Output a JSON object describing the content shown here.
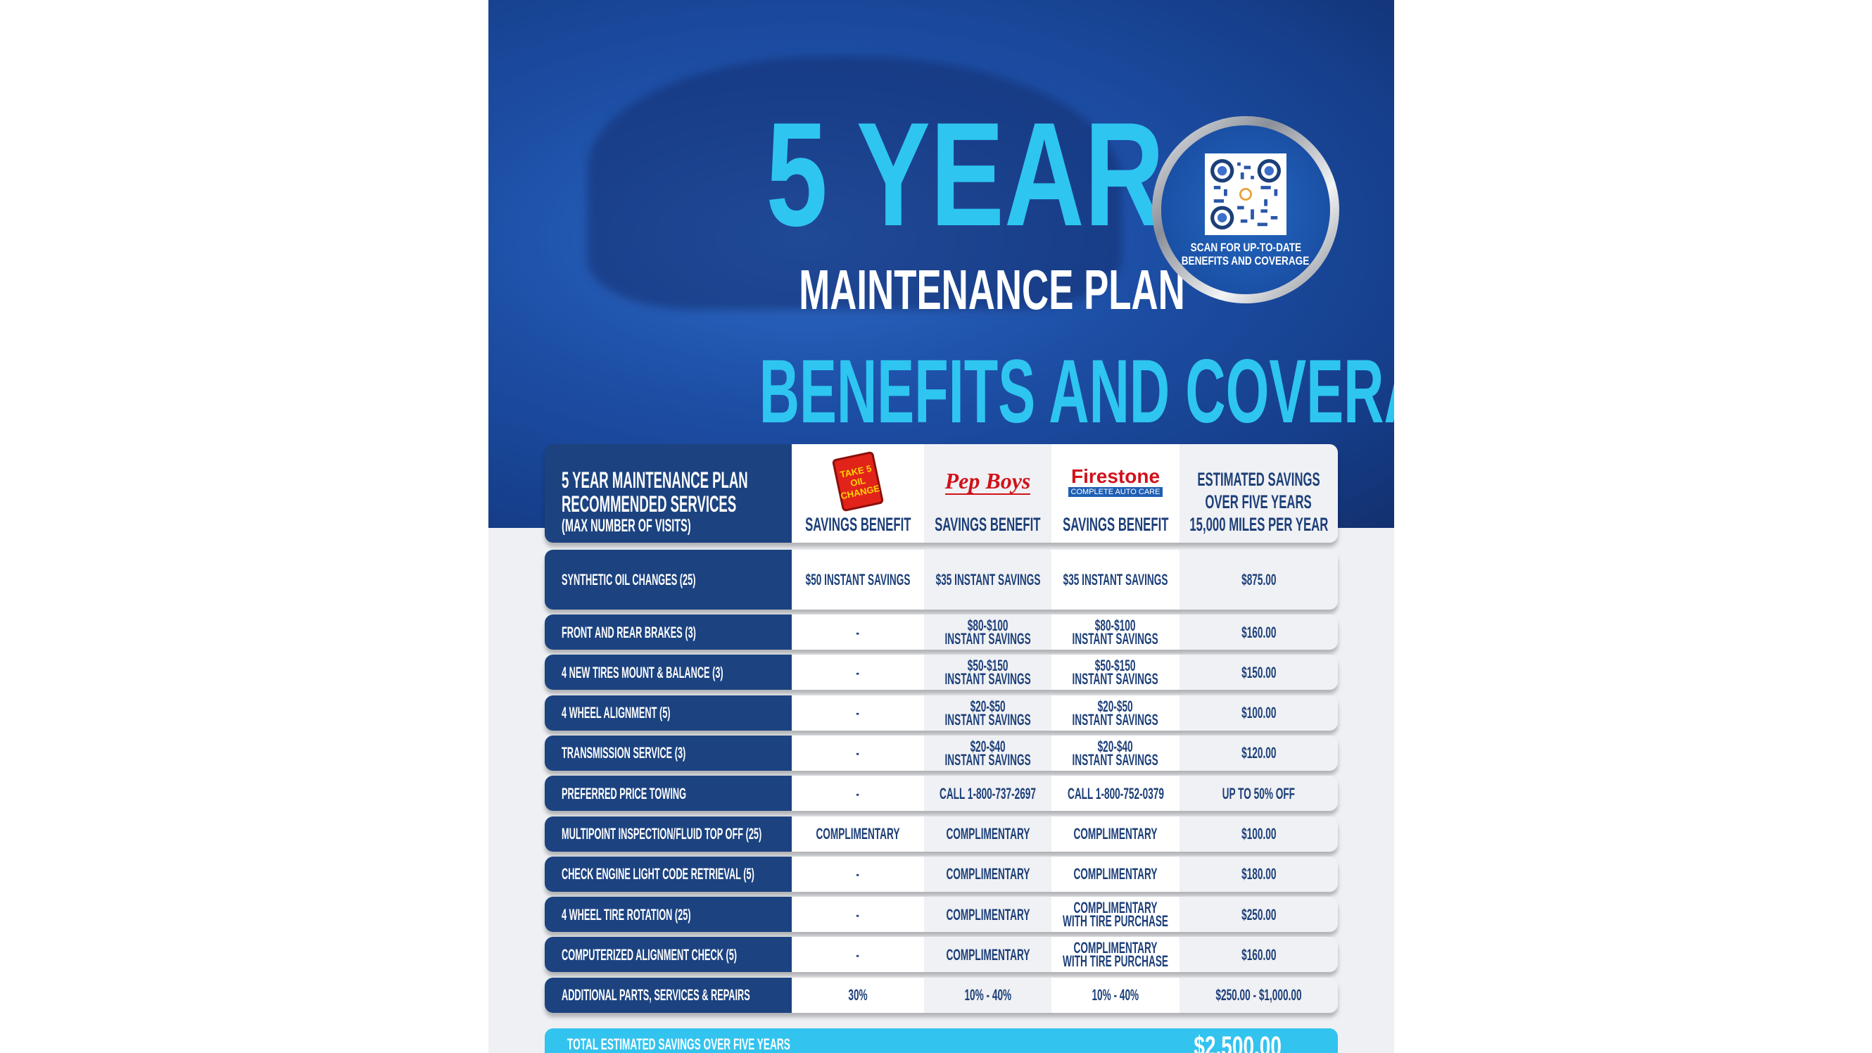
{
  "hero": {
    "title_big": "5 YEAR",
    "title_sub": "MAINTENANCE PLAN",
    "headline": "BENEFITS AND COVERAGE",
    "qr_caption_1": "SCAN FOR UP-TO-DATE",
    "qr_caption_2": "BENEFITS AND COVERAGE"
  },
  "colors": {
    "navy": "#1c4380",
    "cyan": "#2ec5f1",
    "hero_blue": "#1d4fa6"
  },
  "table": {
    "header": {
      "col0_1": "5 YEAR MAINTENANCE PLAN",
      "col0_2": "RECOMMENDED SERVICES",
      "col0_3": "(MAX NUMBER OF VISITS)",
      "brand1": "TAKE 5 OIL CHANGE",
      "brand2": "Pep Boys",
      "brand3": "Firestone",
      "brand3_tag": "COMPLETE AUTO CARE",
      "col1": "SAVINGS BENEFIT",
      "col2": "SAVINGS BENEFIT",
      "col3": "SAVINGS BENEFIT",
      "col4_1": "ESTIMATED SAVINGS",
      "col4_2": "OVER FIVE YEARS",
      "col4_3": "15,000 MILES PER YEAR"
    },
    "rows": [
      {
        "service": "SYNTHETIC OIL CHANGES (25)",
        "take5": "$50 INSTANT SAVINGS",
        "pepboys": "$35 INSTANT SAVINGS",
        "firestone": "$35 INSTANT SAVINGS",
        "estimated": "$875.00"
      },
      {
        "service": "FRONT AND REAR BRAKES (3)",
        "take5": "-",
        "pepboys": "$80-$100\nINSTANT SAVINGS",
        "firestone": "$80-$100\nINSTANT SAVINGS",
        "estimated": "$160.00"
      },
      {
        "service": "4 NEW TIRES MOUNT & BALANCE (3)",
        "take5": "-",
        "pepboys": "$50-$150\nINSTANT SAVINGS",
        "firestone": "$50-$150\nINSTANT SAVINGS",
        "estimated": "$150.00"
      },
      {
        "service": "4 WHEEL ALIGNMENT (5)",
        "take5": "-",
        "pepboys": "$20-$50\nINSTANT SAVINGS",
        "firestone": "$20-$50\nINSTANT SAVINGS",
        "estimated": "$100.00"
      },
      {
        "service": "TRANSMISSION SERVICE (3)",
        "take5": "-",
        "pepboys": "$20-$40\nINSTANT SAVINGS",
        "firestone": "$20-$40\nINSTANT SAVINGS",
        "estimated": "$120.00"
      },
      {
        "service": "PREFERRED PRICE TOWING",
        "take5": "-",
        "pepboys": "CALL 1-800-737-2697",
        "firestone": "CALL 1-800-752-0379",
        "estimated": "UP TO 50% OFF"
      },
      {
        "service": "MULTIPOINT INSPECTION/FLUID TOP OFF (25)",
        "take5": "COMPLIMENTARY",
        "pepboys": "COMPLIMENTARY",
        "firestone": "COMPLIMENTARY",
        "estimated": "$100.00"
      },
      {
        "service": "CHECK ENGINE LIGHT CODE RETRIEVAL (5)",
        "take5": "-",
        "pepboys": "COMPLIMENTARY",
        "firestone": "COMPLIMENTARY",
        "estimated": "$180.00"
      },
      {
        "service": "4 WHEEL TIRE ROTATION (25)",
        "take5": "-",
        "pepboys": "COMPLIMENTARY",
        "firestone": "COMPLIMENTARY\nWITH TIRE PURCHASE",
        "estimated": "$250.00"
      },
      {
        "service": "COMPUTERIZED ALIGNMENT CHECK (5)",
        "take5": "-",
        "pepboys": "COMPLIMENTARY",
        "firestone": "COMPLIMENTARY\nWITH TIRE PURCHASE",
        "estimated": "$160.00"
      },
      {
        "service": "ADDITIONAL PARTS, SERVICES & REPAIRS",
        "take5": "30%",
        "pepboys": "10% - 40%",
        "firestone": "10% - 40%",
        "estimated": "$250.00 - $1,000.00"
      }
    ],
    "total": {
      "label": "TOTAL ESTIMATED SAVINGS OVER FIVE YEARS",
      "value": "$2,500.00"
    }
  }
}
